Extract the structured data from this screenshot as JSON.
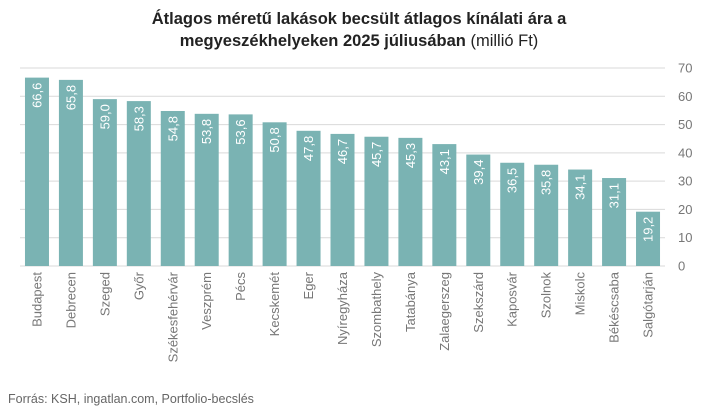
{
  "chart_data": {
    "type": "bar",
    "title_line1": "Átlagos méretű lakások becsült átlagos kínálati ára a",
    "title_line2": "megyeszékhelyeken 2025 júliusában",
    "title_unit": "(millió Ft)",
    "categories": [
      "Budapest",
      "Debrecen",
      "Szeged",
      "Győr",
      "Székesfehérvár",
      "Veszprém",
      "Pécs",
      "Kecskemét",
      "Eger",
      "Nyíregyháza",
      "Szombathely",
      "Tatabánya",
      "Zalaegerszeg",
      "Szekszárd",
      "Kaposvár",
      "Szolnok",
      "Miskolc",
      "Békéscsaba",
      "Salgótarján"
    ],
    "values": [
      66.6,
      65.8,
      59.0,
      58.3,
      54.8,
      53.8,
      53.6,
      50.8,
      47.8,
      46.7,
      45.7,
      45.3,
      43.1,
      39.4,
      36.5,
      35.8,
      34.1,
      31.1,
      19.2
    ],
    "value_labels": [
      "66,6",
      "65,8",
      "59,0",
      "58,3",
      "54,8",
      "53,8",
      "53,6",
      "50,8",
      "47,8",
      "46,7",
      "45,7",
      "45,3",
      "43,1",
      "39,4",
      "36,5",
      "35,8",
      "34,1",
      "31,1",
      "19,2"
    ],
    "y_ticks": [
      0,
      10,
      20,
      30,
      40,
      50,
      60,
      70
    ],
    "ylim": [
      0,
      70
    ],
    "y_axis_position": "right",
    "grid": true,
    "bar_color": "#7ab3b3",
    "grid_color": "#d9d9d9"
  },
  "source": "Forrás: KSH, ingatlan.com, Portfolio-becslés"
}
